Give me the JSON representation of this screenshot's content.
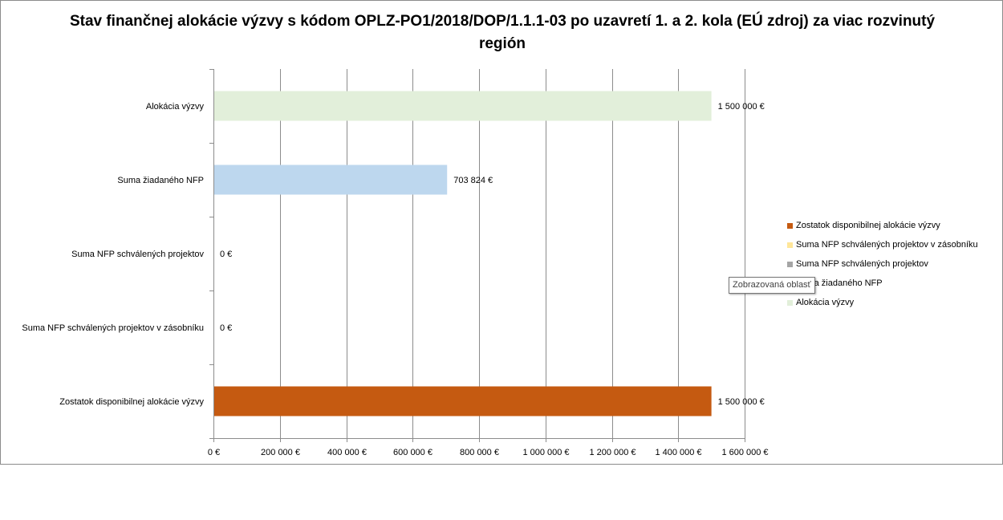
{
  "chart_data": {
    "type": "bar",
    "orientation": "horizontal",
    "title": "Stav finančnej alokácie výzvy s kódom OPLZ-PO1/2018/DOP/1.1.1-03 po uzavretí 1. a 2. kola (EÚ zdroj) za viac rozvinutý región",
    "categories": [
      "Alokácia výzvy",
      "Suma žiadaného NFP",
      "Suma NFP schválených projektov",
      "Suma NFP schválených projektov v zásobníku",
      "Zostatok disponibilnej alokácie výzvy"
    ],
    "values": [
      1500000,
      703824,
      0,
      0,
      1500000
    ],
    "data_labels": [
      "1 500 000 €",
      "703 824 €",
      "0 €",
      "0 €",
      "1 500 000 €"
    ],
    "colors": [
      "#e2efda",
      "#bdd7ee",
      "#a5a5a5",
      "#ffe699",
      "#c55a11"
    ],
    "xlim": [
      0,
      1600000
    ],
    "x_ticks": [
      0,
      200000,
      400000,
      600000,
      800000,
      1000000,
      1200000,
      1400000,
      1600000
    ],
    "x_tick_labels": [
      "0 €",
      "200 000 €",
      "400 000 €",
      "600 000 €",
      "800 000 €",
      "1 000 000 €",
      "1 200 000 €",
      "1 400 000 €",
      "1 600 000 €"
    ],
    "grid": true,
    "legend_position": "right",
    "legend": [
      {
        "label": "Zostatok disponibilnej alokácie výzvy",
        "color": "#c55a11"
      },
      {
        "label": "Suma NFP schválených projektov v zásobníku",
        "color": "#ffe699"
      },
      {
        "label": "Suma NFP schválených projektov",
        "color": "#a5a5a5"
      },
      {
        "label": "Suma žiadaného NFP",
        "color": "#bdd7ee"
      },
      {
        "label": "Alokácia výzvy",
        "color": "#e2efda"
      }
    ]
  },
  "tooltip": {
    "text": "Zobrazovaná oblasť"
  }
}
